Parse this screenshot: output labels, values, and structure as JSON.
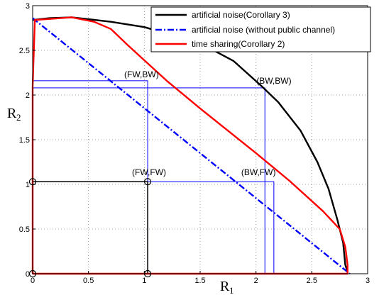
{
  "chart_data": {
    "type": "line",
    "xlabel": "R",
    "xlabel_sub": "1",
    "ylabel": "R",
    "ylabel_sub": "2",
    "xlim": [
      0,
      3
    ],
    "ylim": [
      0,
      3
    ],
    "xticks": [
      0,
      0.5,
      1,
      1.5,
      2,
      2.5,
      3
    ],
    "yticks": [
      0,
      0.5,
      1,
      1.5,
      2,
      2.5,
      3
    ],
    "xtick_labels": [
      "0",
      "0.5",
      "1",
      "1.5",
      "2",
      "2.5",
      "3"
    ],
    "ytick_labels": [
      "0",
      "0.5",
      "1",
      "1.5",
      "2",
      "2.5",
      "3"
    ],
    "grid": true,
    "legend_position": "top-right",
    "series": [
      {
        "name": "artificial noise(Corollary 3)",
        "color": "#000000",
        "style": "solid",
        "points": [
          [
            0,
            2.84
          ],
          [
            0.15,
            2.86
          ],
          [
            0.35,
            2.87
          ],
          [
            0.7,
            2.82
          ],
          [
            1.0,
            2.76
          ],
          [
            1.5,
            2.58
          ],
          [
            1.8,
            2.38
          ],
          [
            2.05,
            2.1
          ],
          [
            2.2,
            1.92
          ],
          [
            2.4,
            1.6
          ],
          [
            2.55,
            1.25
          ],
          [
            2.65,
            0.95
          ],
          [
            2.73,
            0.6
          ],
          [
            2.76,
            0.45
          ],
          [
            2.78,
            0.35
          ],
          [
            2.8,
            0.1
          ],
          [
            2.82,
            0.02
          ]
        ]
      },
      {
        "name": "artificial noise (without public channel)",
        "color": "#0000ff",
        "style": "dashdot",
        "points": [
          [
            0,
            2.86
          ],
          [
            2.84,
            0
          ]
        ]
      },
      {
        "name": "time sharing(Corollary 2)",
        "color": "#ff0000",
        "style": "solid",
        "points": [
          [
            0,
            0
          ],
          [
            0,
            2.1
          ],
          [
            0.02,
            2.84
          ],
          [
            0.35,
            2.87
          ],
          [
            0.55,
            2.82
          ],
          [
            0.7,
            2.74
          ],
          [
            0.85,
            2.56
          ],
          [
            1.2,
            2.16
          ],
          [
            1.5,
            1.85
          ],
          [
            2.0,
            1.35
          ],
          [
            2.3,
            1.04
          ],
          [
            2.6,
            0.7
          ],
          [
            2.75,
            0.5
          ],
          [
            2.8,
            0.3
          ],
          [
            2.82,
            0.1
          ],
          [
            2.82,
            0
          ],
          [
            0,
            0
          ]
        ]
      }
    ],
    "blue_boxes": [
      {
        "x0": 0,
        "y0": 0,
        "x1": 1.03,
        "y1": 2.16
      },
      {
        "x0": 0,
        "y0": 0,
        "x1": 2.08,
        "y1": 2.08
      },
      {
        "x0": 0,
        "y0": 0,
        "x1": 2.16,
        "y1": 1.03
      }
    ],
    "black_box": {
      "x0": 0,
      "y0": 0,
      "x1": 1.03,
      "y1": 1.03
    },
    "markers": [
      [
        0,
        0
      ],
      [
        1.03,
        0
      ],
      [
        0,
        1.03
      ],
      [
        1.03,
        1.03
      ]
    ],
    "annotations": [
      {
        "text": "(FW,BW)",
        "x": 1.03,
        "y": 2.16
      },
      {
        "text": "(BW,BW)",
        "x": 2.08,
        "y": 2.08
      },
      {
        "text": "(FW,FW)",
        "x": 1.03,
        "y": 1.03
      },
      {
        "text": "(BW,FW)",
        "x": 2.16,
        "y": 1.03
      }
    ]
  }
}
